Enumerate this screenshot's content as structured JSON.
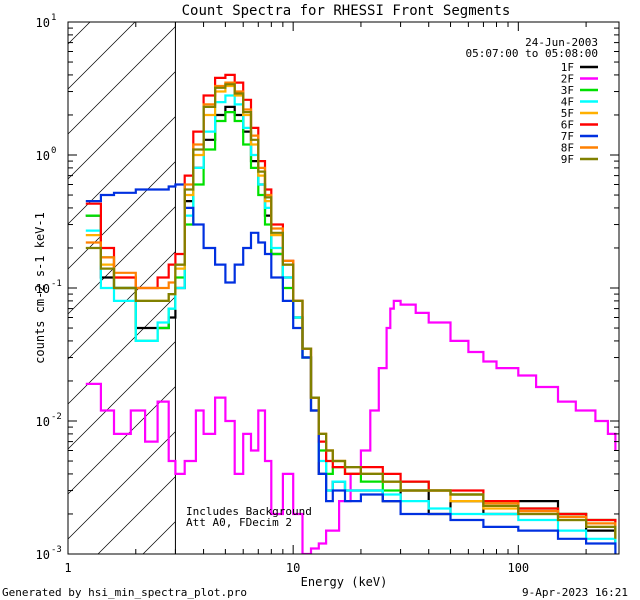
{
  "chart_data": {
    "type": "line",
    "title": "Count Spectra for RHESSI Front Segments",
    "xlabel": "Energy (keV)",
    "ylabel": "counts cm-2 s-1 keV-1",
    "xscale": "log",
    "yscale": "log",
    "xlim": [
      1,
      280
    ],
    "ylim": [
      0.001,
      10
    ],
    "x_ticks": [
      {
        "v": 1,
        "label": "1"
      },
      {
        "v": 10,
        "label": "10"
      },
      {
        "v": 100,
        "label": "100"
      }
    ],
    "y_ticks": [
      {
        "v": 0.001,
        "base": "10",
        "exp": "-3"
      },
      {
        "v": 0.01,
        "base": "10",
        "exp": "-2"
      },
      {
        "v": 0.1,
        "base": "10",
        "exp": "-1"
      },
      {
        "v": 1,
        "base": "10",
        "exp": "0"
      },
      {
        "v": 10,
        "base": "10",
        "exp": "1"
      }
    ],
    "shaded_region": {
      "x_min": 1,
      "x_max": 3,
      "style": "diagonal hatch"
    },
    "info_date": "24-Jun-2003",
    "info_time": "05:07:00 to 05:08:00",
    "note_line1": "Includes Background",
    "note_line2": "Att A0, FDecim 2",
    "series": [
      {
        "name": "1F",
        "color": "#000000",
        "x": [
          1.2,
          1.4,
          1.6,
          2.0,
          2.5,
          2.8,
          3.0,
          3.3,
          3.6,
          4.0,
          4.5,
          5.0,
          5.5,
          6.0,
          6.5,
          7.0,
          7.5,
          8.0,
          9.0,
          10.0,
          11.0,
          12.0,
          13.0,
          14.0,
          15.0,
          17.0,
          20.0,
          25.0,
          30.0,
          40.0,
          50.0,
          70.0,
          100.0,
          150.0,
          200.0,
          270.0
        ],
        "values": [
          0.35,
          0.12,
          0.1,
          0.05,
          0.05,
          0.06,
          0.1,
          0.45,
          0.8,
          1.3,
          2.0,
          2.3,
          2.0,
          1.5,
          0.9,
          0.6,
          0.35,
          0.18,
          0.12,
          0.06,
          0.03,
          0.012,
          0.004,
          0.003,
          0.0035,
          0.003,
          0.003,
          0.0025,
          0.003,
          0.002,
          0.0025,
          0.002,
          0.0025,
          0.002,
          0.0015,
          0.0012
        ]
      },
      {
        "name": "2F",
        "color": "#ff00ff",
        "x": [
          1.2,
          1.4,
          1.6,
          1.9,
          2.2,
          2.5,
          2.8,
          3.0,
          3.3,
          3.7,
          4.0,
          4.5,
          5.0,
          5.5,
          6.0,
          6.5,
          7.0,
          7.5,
          8.0,
          9.0,
          10.0,
          11.0,
          12.0,
          13.0,
          14.0,
          16.0,
          18.0,
          20.0,
          22.0,
          24.0,
          26.0,
          27.0,
          28.0,
          30.0,
          35.0,
          40.0,
          50.0,
          60.0,
          70.0,
          80.0,
          100.0,
          120.0,
          150.0,
          180.0,
          220.0,
          250.0,
          270.0
        ],
        "values": [
          0.019,
          0.012,
          0.008,
          0.012,
          0.007,
          0.014,
          0.005,
          0.004,
          0.005,
          0.012,
          0.008,
          0.015,
          0.01,
          0.004,
          0.008,
          0.006,
          0.012,
          0.005,
          0.002,
          0.004,
          0.002,
          0.001,
          0.0011,
          0.0012,
          0.0015,
          0.0025,
          0.004,
          0.006,
          0.012,
          0.025,
          0.05,
          0.07,
          0.08,
          0.075,
          0.065,
          0.055,
          0.04,
          0.033,
          0.028,
          0.025,
          0.022,
          0.018,
          0.014,
          0.012,
          0.01,
          0.008,
          0.006
        ]
      },
      {
        "name": "3F",
        "color": "#00e000",
        "x": [
          1.2,
          1.4,
          1.6,
          2.0,
          2.5,
          2.8,
          3.0,
          3.3,
          3.6,
          4.0,
          4.5,
          5.0,
          5.5,
          6.0,
          6.5,
          7.0,
          7.5,
          8.0,
          9.0,
          10.0,
          11.0,
          12.0,
          13.0,
          14.0,
          15.0,
          17.0,
          20.0,
          25.0,
          30.0,
          40.0,
          50.0,
          70.0,
          100.0,
          150.0,
          200.0,
          270.0
        ],
        "values": [
          0.35,
          0.17,
          0.1,
          0.04,
          0.05,
          0.07,
          0.12,
          0.3,
          0.6,
          1.1,
          1.8,
          2.1,
          1.8,
          1.2,
          0.8,
          0.5,
          0.3,
          0.18,
          0.1,
          0.06,
          0.03,
          0.015,
          0.006,
          0.004,
          0.0045,
          0.004,
          0.0035,
          0.003,
          0.0035,
          0.003,
          0.0028,
          0.0025,
          0.0022,
          0.002,
          0.0018,
          0.0014
        ]
      },
      {
        "name": "4F",
        "color": "#00ffff",
        "x": [
          1.2,
          1.4,
          1.6,
          2.0,
          2.5,
          2.8,
          3.0,
          3.3,
          3.6,
          4.0,
          4.5,
          5.0,
          5.5,
          6.0,
          6.5,
          7.0,
          7.5,
          8.0,
          9.0,
          10.0,
          11.0,
          12.0,
          13.0,
          14.0,
          15.0,
          17.0,
          20.0,
          25.0,
          30.0,
          40.0,
          50.0,
          70.0,
          100.0,
          150.0,
          200.0,
          270.0
        ],
        "values": [
          0.27,
          0.1,
          0.08,
          0.04,
          0.055,
          0.07,
          0.1,
          0.35,
          0.8,
          1.5,
          2.5,
          2.8,
          2.4,
          1.6,
          1.0,
          0.6,
          0.4,
          0.2,
          0.12,
          0.06,
          0.03,
          0.015,
          0.005,
          0.003,
          0.0035,
          0.003,
          0.003,
          0.0028,
          0.0025,
          0.0022,
          0.002,
          0.002,
          0.0018,
          0.0015,
          0.0013,
          0.0011
        ]
      },
      {
        "name": "5F",
        "color": "#ffb000",
        "x": [
          1.2,
          1.4,
          1.6,
          2.0,
          2.5,
          2.8,
          3.0,
          3.3,
          3.6,
          4.0,
          4.5,
          5.0,
          5.5,
          6.0,
          6.5,
          7.0,
          7.5,
          8.0,
          9.0,
          10.0,
          11.0,
          12.0,
          13.0,
          14.0,
          15.0,
          17.0,
          20.0,
          25.0,
          30.0,
          40.0,
          50.0,
          70.0,
          100.0,
          150.0,
          200.0,
          270.0
        ],
        "values": [
          0.25,
          0.15,
          0.12,
          0.08,
          0.08,
          0.09,
          0.14,
          0.5,
          1.0,
          2.0,
          3.0,
          3.3,
          2.8,
          2.0,
          1.2,
          0.7,
          0.45,
          0.25,
          0.15,
          0.08,
          0.035,
          0.015,
          0.008,
          0.006,
          0.005,
          0.004,
          0.004,
          0.0035,
          0.003,
          0.003,
          0.0025,
          0.0022,
          0.002,
          0.0018,
          0.0016,
          0.0013
        ]
      },
      {
        "name": "6F",
        "color": "#ff0000",
        "x": [
          1.2,
          1.4,
          1.6,
          2.0,
          2.5,
          2.8,
          3.0,
          3.3,
          3.6,
          4.0,
          4.5,
          5.0,
          5.5,
          6.0,
          6.5,
          7.0,
          7.5,
          8.0,
          9.0,
          10.0,
          11.0,
          12.0,
          13.0,
          14.0,
          15.0,
          17.0,
          20.0,
          25.0,
          30.0,
          40.0,
          50.0,
          70.0,
          100.0,
          150.0,
          200.0,
          270.0
        ],
        "values": [
          0.43,
          0.2,
          0.12,
          0.1,
          0.12,
          0.15,
          0.18,
          0.7,
          1.5,
          2.8,
          3.8,
          4.0,
          3.5,
          2.6,
          1.6,
          0.9,
          0.55,
          0.3,
          0.16,
          0.08,
          0.035,
          0.015,
          0.007,
          0.005,
          0.0045,
          0.004,
          0.0045,
          0.004,
          0.0035,
          0.003,
          0.003,
          0.0025,
          0.0022,
          0.002,
          0.0018,
          0.0015
        ]
      },
      {
        "name": "7F",
        "color": "#0030e0",
        "x": [
          1.2,
          1.4,
          1.6,
          2.0,
          2.5,
          2.8,
          3.0,
          3.3,
          3.6,
          4.0,
          4.5,
          5.0,
          5.5,
          6.0,
          6.5,
          7.0,
          7.5,
          8.0,
          9.0,
          10.0,
          11.0,
          12.0,
          13.0,
          14.0,
          15.0,
          17.0,
          20.0,
          25.0,
          30.0,
          40.0,
          50.0,
          70.0,
          100.0,
          150.0,
          200.0,
          270.0
        ],
        "values": [
          0.45,
          0.5,
          0.52,
          0.55,
          0.55,
          0.58,
          0.6,
          0.4,
          0.3,
          0.2,
          0.15,
          0.11,
          0.15,
          0.2,
          0.26,
          0.22,
          0.18,
          0.12,
          0.08,
          0.05,
          0.03,
          0.012,
          0.004,
          0.0025,
          0.003,
          0.0025,
          0.0028,
          0.0025,
          0.002,
          0.002,
          0.0018,
          0.0016,
          0.0015,
          0.0013,
          0.0012,
          0.001
        ]
      },
      {
        "name": "8F",
        "color": "#ff8000",
        "x": [
          1.2,
          1.4,
          1.6,
          2.0,
          2.5,
          2.8,
          3.0,
          3.3,
          3.6,
          4.0,
          4.5,
          5.0,
          5.5,
          6.0,
          6.5,
          7.0,
          7.5,
          8.0,
          9.0,
          10.0,
          11.0,
          12.0,
          13.0,
          14.0,
          15.0,
          17.0,
          20.0,
          25.0,
          30.0,
          40.0,
          50.0,
          70.0,
          100.0,
          150.0,
          200.0,
          270.0
        ],
        "values": [
          0.22,
          0.17,
          0.13,
          0.1,
          0.1,
          0.11,
          0.15,
          0.6,
          1.2,
          2.4,
          3.3,
          3.5,
          3.0,
          2.2,
          1.4,
          0.8,
          0.5,
          0.28,
          0.16,
          0.08,
          0.035,
          0.015,
          0.008,
          0.006,
          0.005,
          0.0045,
          0.004,
          0.0035,
          0.003,
          0.003,
          0.0028,
          0.0024,
          0.0021,
          0.0019,
          0.0017,
          0.0014
        ]
      },
      {
        "name": "9F",
        "color": "#808000",
        "x": [
          1.2,
          1.4,
          1.6,
          2.0,
          2.5,
          2.8,
          3.0,
          3.3,
          3.6,
          4.0,
          4.5,
          5.0,
          5.5,
          6.0,
          6.5,
          7.0,
          7.5,
          8.0,
          9.0,
          10.0,
          11.0,
          12.0,
          13.0,
          14.0,
          15.0,
          17.0,
          20.0,
          25.0,
          30.0,
          40.0,
          50.0,
          70.0,
          100.0,
          150.0,
          200.0,
          270.0
        ],
        "values": [
          0.2,
          0.14,
          0.1,
          0.08,
          0.08,
          0.09,
          0.15,
          0.55,
          1.1,
          2.3,
          3.2,
          3.4,
          2.9,
          2.1,
          1.3,
          0.75,
          0.48,
          0.26,
          0.15,
          0.08,
          0.035,
          0.015,
          0.008,
          0.006,
          0.005,
          0.0045,
          0.004,
          0.0035,
          0.003,
          0.003,
          0.0028,
          0.0023,
          0.002,
          0.0018,
          0.0016,
          0.0013
        ]
      }
    ]
  },
  "footer": {
    "generator": "Generated by hsi_min_spectra_plot.pro",
    "timestamp": "9-Apr-2023 16:21"
  }
}
